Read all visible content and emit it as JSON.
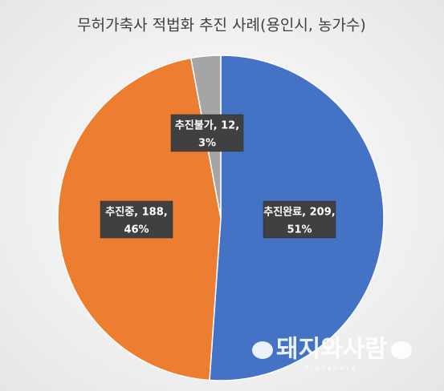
{
  "chart_data": {
    "type": "pie",
    "title": "무허가축사 적법화 추진 사례(용인시, 농가수)",
    "values": [
      209,
      188,
      12
    ],
    "colors": [
      "#4472c4",
      "#ed7d31",
      "#a5a5a5"
    ],
    "value_labels": [
      [
        "추진완료, 209,",
        "51%"
      ],
      [
        "추진중, 188,",
        "46%"
      ],
      [
        "추진불가, 12,",
        "3%"
      ]
    ]
  },
  "watermark": {
    "title": "돼지와사람",
    "subtitle": "PIGPEOPLE"
  }
}
